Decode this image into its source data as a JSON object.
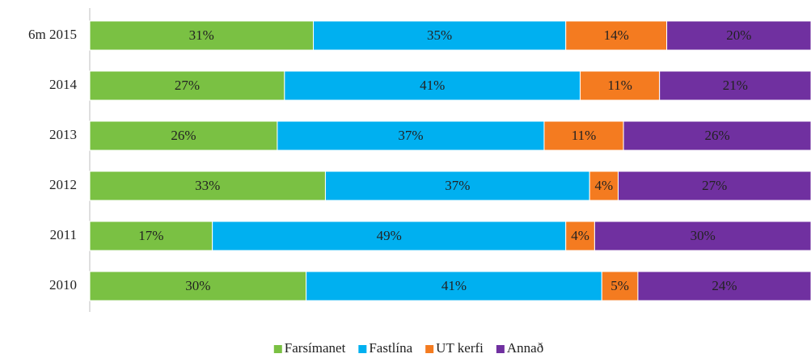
{
  "chart_data": {
    "type": "bar-stacked-percent",
    "categories": [
      "6m 2015",
      "2014",
      "2013",
      "2012",
      "2011",
      "2010"
    ],
    "series": [
      {
        "name": "Farsímanet",
        "color": "#7ac143",
        "values": [
          31,
          27,
          26,
          33,
          17,
          30
        ],
        "value_labels": [
          "31%",
          "27%",
          "26%",
          "33%",
          "17%",
          "30%"
        ]
      },
      {
        "name": "Fastlína",
        "color": "#00b0f0",
        "values": [
          35,
          41,
          37,
          37,
          49,
          41
        ],
        "value_labels": [
          "35%",
          "41%",
          "37%",
          "37%",
          "49%",
          "41%"
        ]
      },
      {
        "name": "UT kerfi",
        "color": "#f47b20",
        "values": [
          14,
          11,
          11,
          4,
          4,
          5
        ],
        "value_labels": [
          "14%",
          "11%",
          "11%",
          "4%",
          "4%",
          "5%"
        ]
      },
      {
        "name": "Annað",
        "color": "#7030a0",
        "values": [
          20,
          21,
          26,
          27,
          30,
          24
        ],
        "value_labels": [
          "20%",
          "21%",
          "26%",
          "27%",
          "30%",
          "24%"
        ]
      }
    ],
    "legend": "bottom"
  }
}
